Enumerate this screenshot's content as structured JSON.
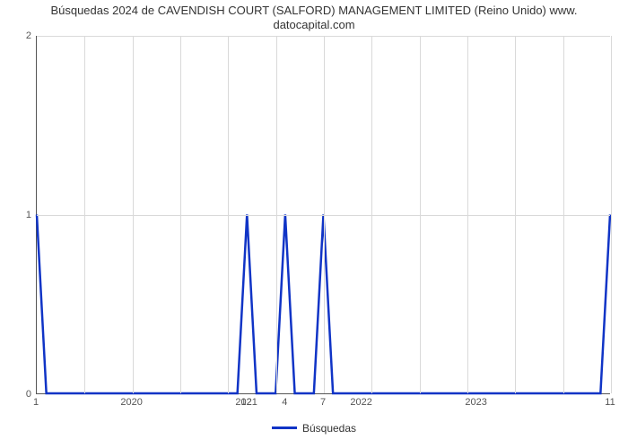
{
  "chart": {
    "type": "line",
    "title_line1": "Búsquedas 2024 de CAVENDISH COURT (SALFORD) MANAGEMENT LIMITED (Reino Unido) www.",
    "title_line2": "datocapital.com",
    "title_fontsize": 13,
    "title_color": "#333333",
    "background_color": "#ffffff",
    "plot_border_color": "#555555",
    "grid_color": "#d9d9d9",
    "xlim": [
      0,
      60
    ],
    "ylim": [
      0,
      2
    ],
    "ytick_positions": [
      0,
      1,
      2
    ],
    "ytick_labels": [
      "0",
      "1",
      "2"
    ],
    "xtick_major_positions": [
      10,
      22,
      34,
      46,
      58
    ],
    "xtick_major_labels": [
      "2020",
      "2021",
      "2022",
      "2023",
      ""
    ],
    "xgrid_positions": [
      0,
      5,
      10,
      15,
      20,
      25,
      30,
      35,
      40,
      45,
      50,
      55,
      60
    ],
    "tick_label_fontsize": 11,
    "tick_label_color": "#555555",
    "series": {
      "name": "Búsquedas",
      "color": "#1034c6",
      "line_width": 2.5,
      "points": [
        {
          "x": 0,
          "y": 1,
          "label": "1"
        },
        {
          "x": 1,
          "y": 0
        },
        {
          "x": 21,
          "y": 0
        },
        {
          "x": 22,
          "y": 1,
          "label": "12"
        },
        {
          "x": 23,
          "y": 0
        },
        {
          "x": 25,
          "y": 0
        },
        {
          "x": 26,
          "y": 1,
          "label": "4"
        },
        {
          "x": 27,
          "y": 0
        },
        {
          "x": 29,
          "y": 0
        },
        {
          "x": 30,
          "y": 1,
          "label": "7"
        },
        {
          "x": 31,
          "y": 0
        },
        {
          "x": 59,
          "y": 0
        },
        {
          "x": 60,
          "y": 1,
          "label": "11"
        }
      ]
    },
    "legend": {
      "label": "Búsquedas",
      "swatch_color": "#1034c6",
      "fontsize": 12
    }
  }
}
